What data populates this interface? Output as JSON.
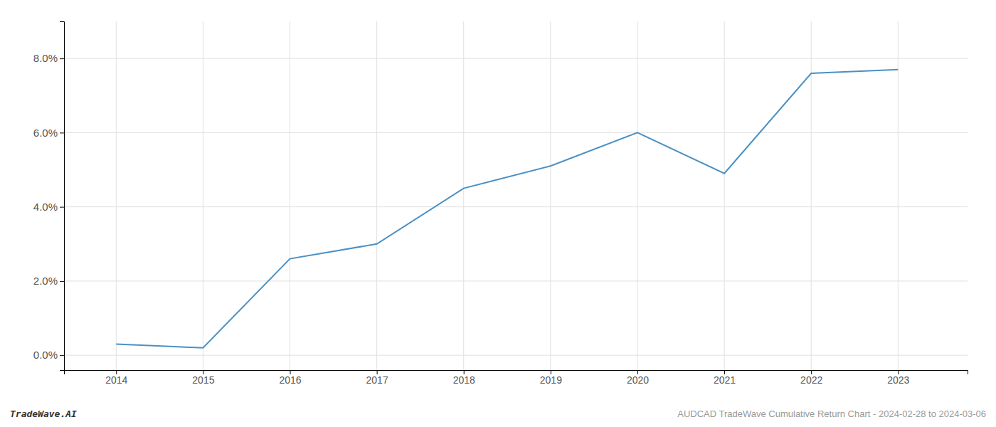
{
  "chart_data": {
    "type": "line",
    "title": "AUDCAD TradeWave Cumulative Return Chart - 2024-02-28 to 2024-03-06",
    "annotations": [
      "TradeWave.AI"
    ],
    "x": [
      2014,
      2015,
      2016,
      2017,
      2018,
      2019,
      2020,
      2021,
      2022,
      2023
    ],
    "values": [
      0.003,
      0.002,
      0.026,
      0.03,
      0.045,
      0.051,
      0.06,
      0.049,
      0.076,
      0.077
    ],
    "color": "#4a90c4",
    "xlim": [
      2013.4,
      2023.8
    ],
    "xticks": [
      2014,
      2015,
      2016,
      2017,
      2018,
      2019,
      2020,
      2021,
      2022,
      2023
    ],
    "ylim": [
      -0.004,
      0.09
    ],
    "yticks": [
      {
        "value": 0.0,
        "label": "0.0%"
      },
      {
        "value": 0.02,
        "label": "2.0%"
      },
      {
        "value": 0.04,
        "label": "4.0%"
      },
      {
        "value": 0.06,
        "label": "6.0%"
      },
      {
        "value": 0.08,
        "label": "8.0%"
      }
    ],
    "grid": true
  }
}
